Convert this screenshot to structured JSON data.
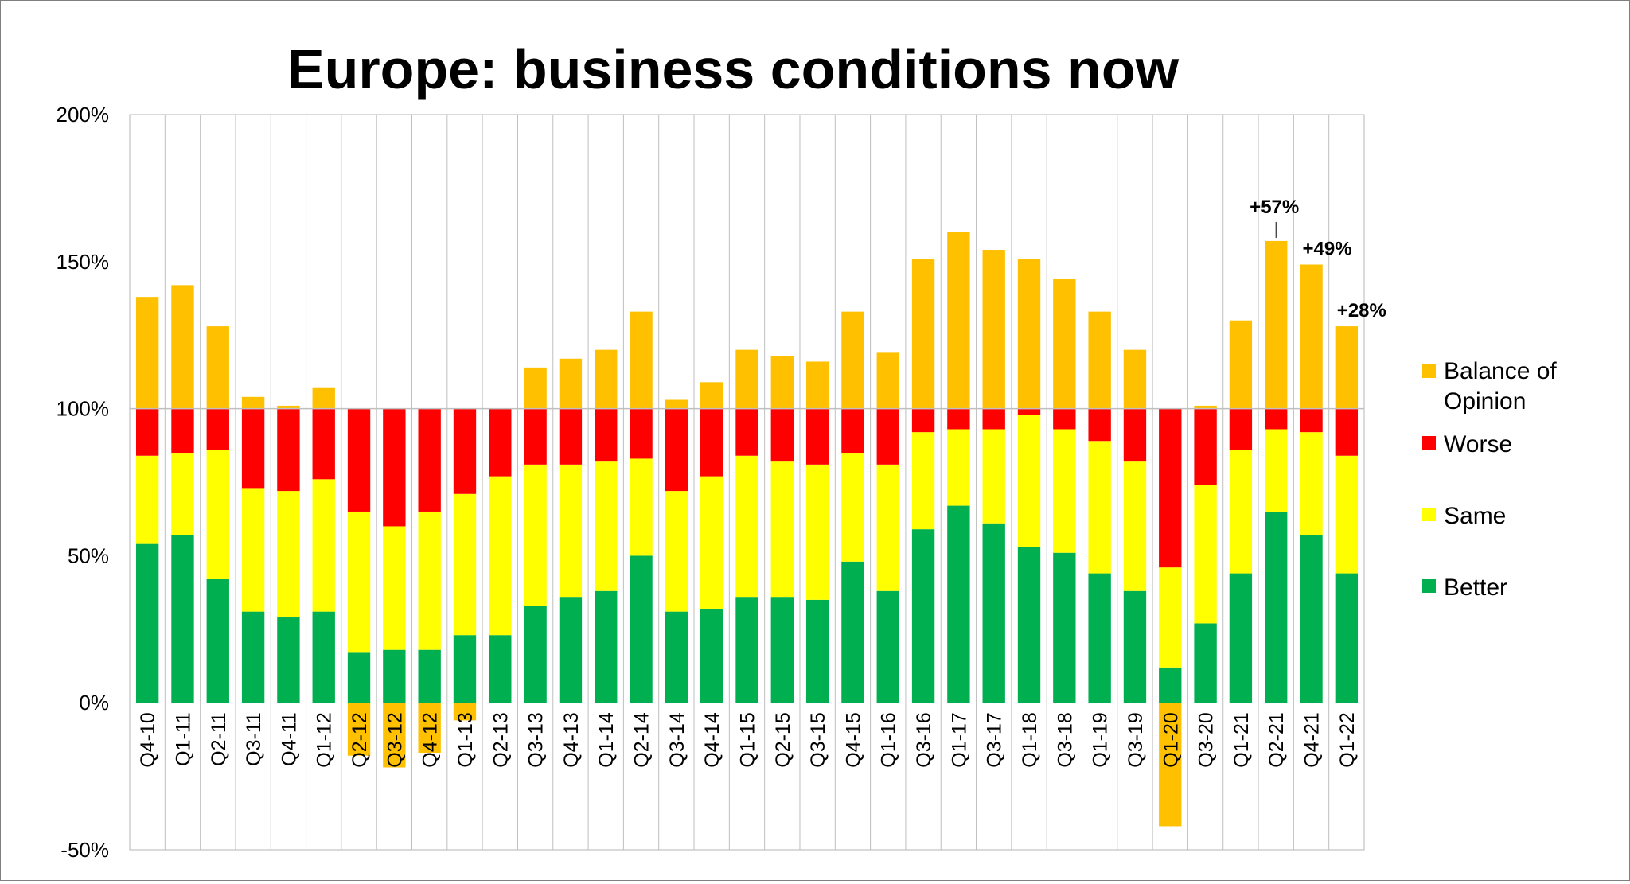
{
  "chart_data": {
    "type": "bar",
    "title": "Europe: business conditions now",
    "xlabel": "",
    "ylabel": "",
    "ylim": [
      -0.5,
      2.0
    ],
    "yticks": [
      "-50%",
      "0%",
      "50%",
      "100%",
      "150%",
      "200%"
    ],
    "grid": "vertical gridlines between categories, horizontal line at 100%",
    "legend_position": "right",
    "categories": [
      "Q4-10",
      "Q1-11",
      "Q2-11",
      "Q3-11",
      "Q4-11",
      "Q1-12",
      "Q2-12",
      "Q3-12",
      "Q4-12",
      "Q1-13",
      "Q2-13",
      "Q3-13",
      "Q4-13",
      "Q1-14",
      "Q2-14",
      "Q3-14",
      "Q4-14",
      "Q1-15",
      "Q2-15",
      "Q3-15",
      "Q4-15",
      "Q1-16",
      "Q3-16",
      "Q1-17",
      "Q3-17",
      "Q1-18",
      "Q3-18",
      "Q1-19",
      "Q3-19",
      "Q1-20",
      "Q3-20",
      "Q1-21",
      "Q2-21",
      "Q4-21",
      "Q1-22"
    ],
    "series": [
      {
        "name": "Better",
        "color": "#00b050",
        "values": [
          0.54,
          0.57,
          0.42,
          0.31,
          0.29,
          0.31,
          0.17,
          0.18,
          0.18,
          0.23,
          0.23,
          0.33,
          0.36,
          0.38,
          0.5,
          0.31,
          0.32,
          0.36,
          0.36,
          0.35,
          0.48,
          0.38,
          0.59,
          0.67,
          0.61,
          0.53,
          0.51,
          0.44,
          0.38,
          0.12,
          0.27,
          0.44,
          0.65,
          0.57,
          0.44
        ]
      },
      {
        "name": "Same",
        "color": "#ffff00",
        "values": [
          0.3,
          0.28,
          0.44,
          0.42,
          0.43,
          0.45,
          0.48,
          0.42,
          0.47,
          0.48,
          0.54,
          0.48,
          0.45,
          0.44,
          0.33,
          0.41,
          0.45,
          0.48,
          0.46,
          0.46,
          0.37,
          0.43,
          0.33,
          0.26,
          0.32,
          0.45,
          0.42,
          0.45,
          0.44,
          0.34,
          0.47,
          0.42,
          0.28,
          0.35,
          0.4
        ]
      },
      {
        "name": "Worse",
        "color": "#ff0000",
        "values": [
          0.16,
          0.15,
          0.14,
          0.27,
          0.28,
          0.24,
          0.35,
          0.4,
          0.35,
          0.29,
          0.23,
          0.19,
          0.19,
          0.18,
          0.17,
          0.28,
          0.23,
          0.16,
          0.18,
          0.19,
          0.15,
          0.19,
          0.08,
          0.07,
          0.07,
          0.02,
          0.07,
          0.11,
          0.18,
          0.54,
          0.26,
          0.14,
          0.07,
          0.08,
          0.16
        ]
      },
      {
        "name": "Balance of Opinion",
        "color": "#ffc000",
        "values": [
          0.38,
          0.42,
          0.28,
          0.04,
          0.01,
          0.07,
          -0.18,
          -0.22,
          -0.17,
          -0.06,
          0.0,
          0.14,
          0.17,
          0.2,
          0.33,
          0.03,
          0.09,
          0.2,
          0.18,
          0.16,
          0.33,
          0.19,
          0.51,
          0.6,
          0.54,
          0.51,
          0.44,
          0.33,
          0.2,
          -0.42,
          0.01,
          0.3,
          0.57,
          0.49,
          0.28
        ]
      }
    ],
    "annotations": [
      {
        "text": "+57%",
        "category": "Q2-21"
      },
      {
        "text": "+49%",
        "category": "Q4-21"
      },
      {
        "text": "+28%",
        "category": "Q1-22"
      }
    ]
  }
}
